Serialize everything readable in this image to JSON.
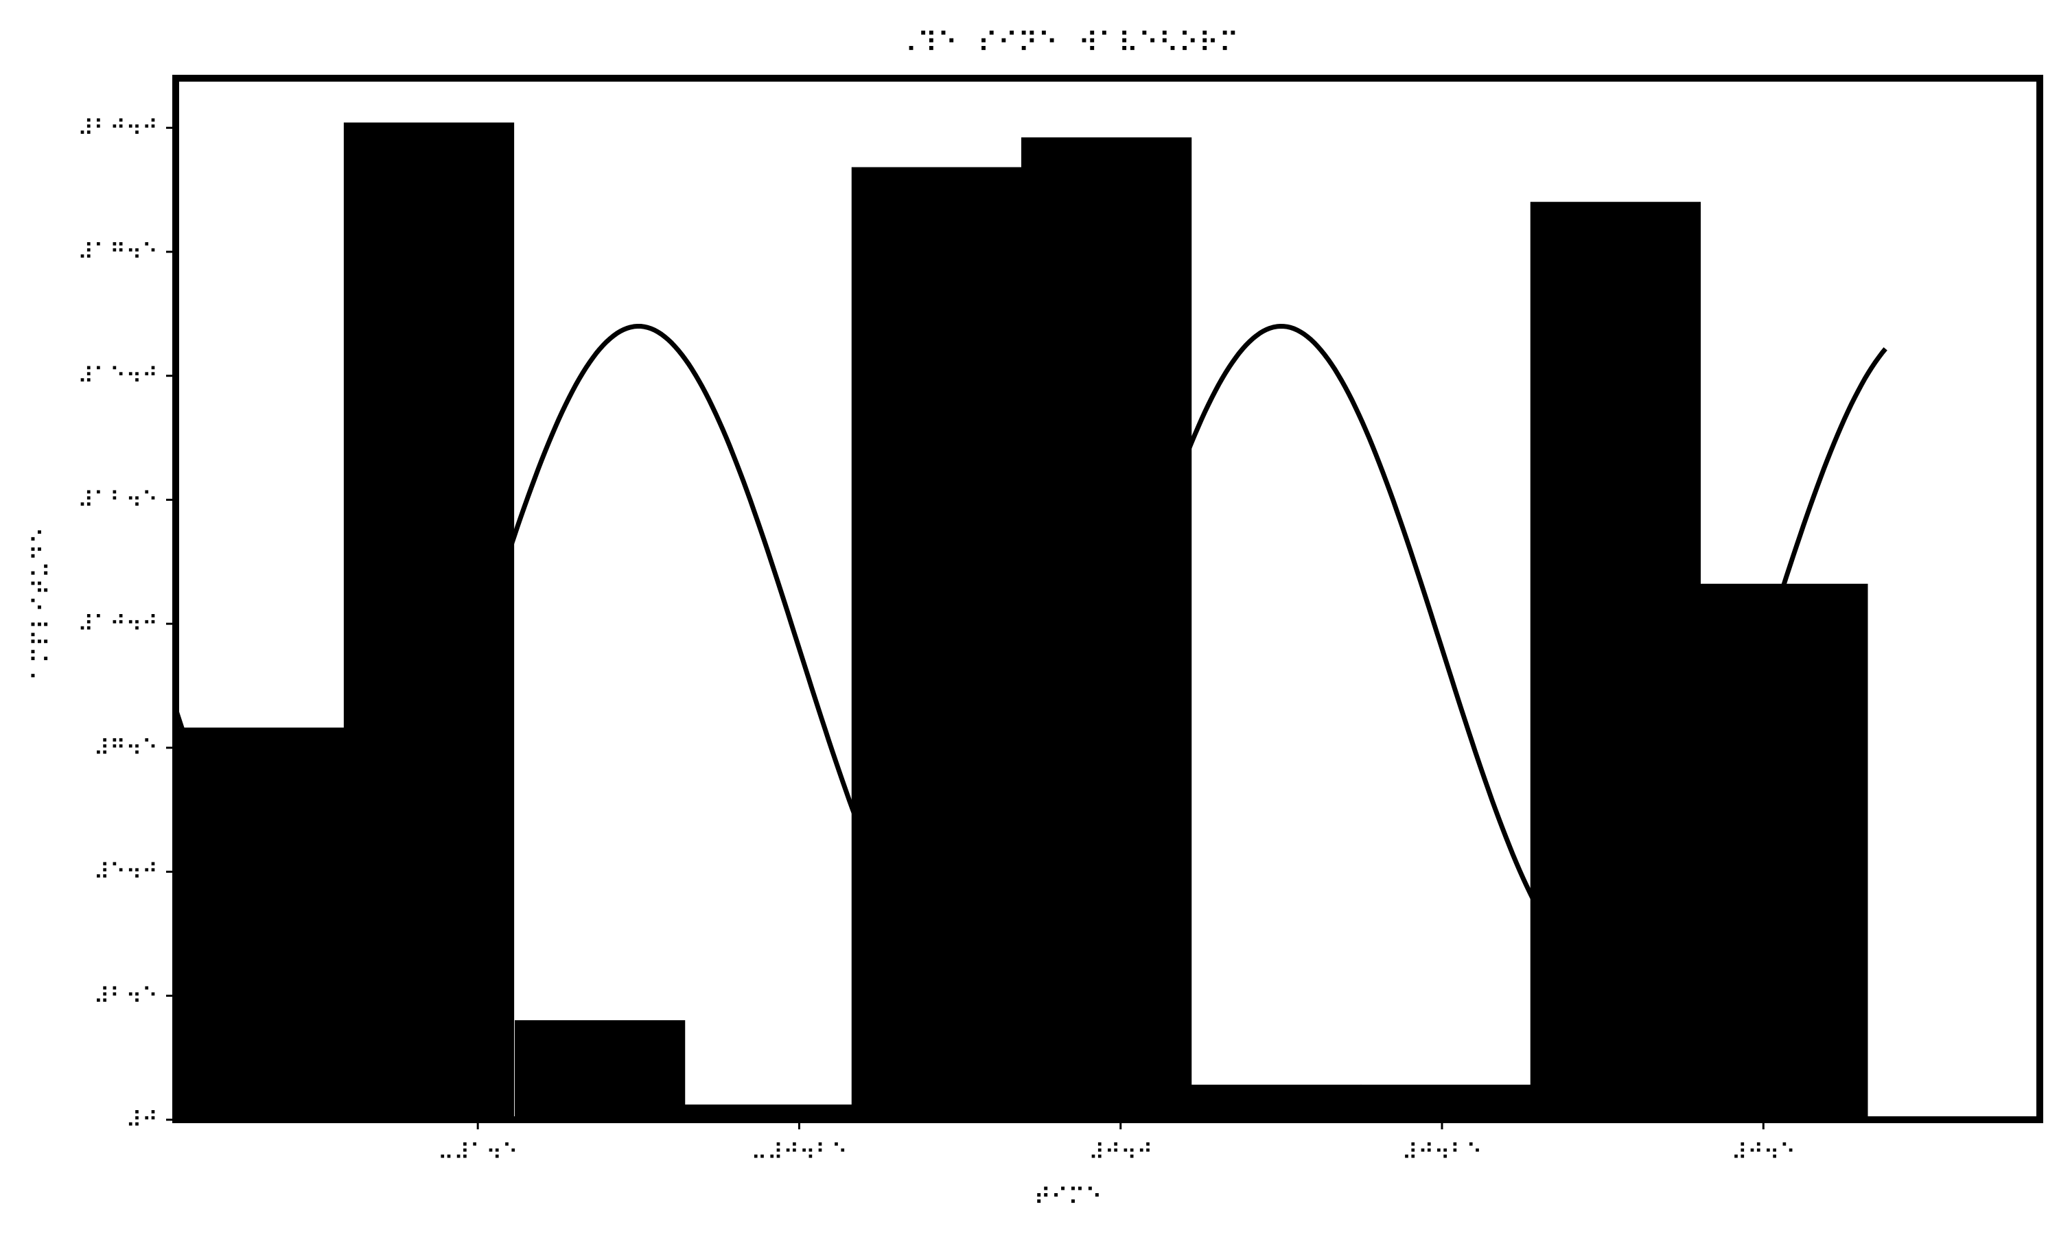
{
  "chart_data": {
    "type": "bar",
    "title": "⠠⠹⠑⠀⠎⠊⠝⠑⠀⠺⠁⠧⠑⠣⠕⠗⠍",
    "xlabel": "⠞⠊⠍⠑",
    "ylabel": "⠁⠍⠏⠇⠊⠞⠥⠙⠑",
    "x_ticks": [
      {
        "value": -0.5,
        "label": "⠤⠼⠁⠲⠑"
      },
      {
        "value": -0.25,
        "label": "⠤⠼⠚⠲⠃⠑"
      },
      {
        "value": 0.0,
        "label": "⠼⠚⠲⠚"
      },
      {
        "value": 0.25,
        "label": "⠼⠚⠲⠃⠑"
      },
      {
        "value": 0.5,
        "label": "⠼⠚⠲⠑"
      }
    ],
    "y_ticks": [
      {
        "value": 0.0,
        "label": "⠼⠚"
      },
      {
        "value": 2.5,
        "label": "⠼⠃⠲⠑"
      },
      {
        "value": 5.0,
        "label": "⠼⠑⠲⠚"
      },
      {
        "value": 7.5,
        "label": "⠼⠛⠲⠑"
      },
      {
        "value": 10.0,
        "label": "⠼⠁⠚⠲⠚"
      },
      {
        "value": 12.5,
        "label": "⠼⠁⠃⠲⠑"
      },
      {
        "value": 15.0,
        "label": "⠼⠁⠑⠲⠚"
      },
      {
        "value": 17.5,
        "label": "⠼⠁⠛⠲⠑"
      },
      {
        "value": 20.0,
        "label": "⠼⠃⠚⠲⠚"
      }
    ],
    "xlim": [
      -0.735,
      0.715
    ],
    "ylim": [
      0,
      21
    ],
    "bar_width": 0.132,
    "bars": [
      {
        "x": -0.67,
        "value": 7.9
      },
      {
        "x": -0.538,
        "value": 20.1
      },
      {
        "x": -0.405,
        "value": 2.0
      },
      {
        "x": -0.275,
        "value": 0.3
      },
      {
        "x": -0.143,
        "value": 19.2
      },
      {
        "x": -0.011,
        "value": 19.8
      },
      {
        "x": 0.121,
        "value": 0.7
      },
      {
        "x": 0.253,
        "value": 0.7
      },
      {
        "x": 0.385,
        "value": 18.5
      },
      {
        "x": 0.515,
        "value": 10.8
      }
    ],
    "curve": {
      "type": "line",
      "amplitude": 6.5,
      "offset": 9.5,
      "frequency": 2.0,
      "phase": 0.0,
      "x_range": [
        -0.735,
        0.595
      ]
    },
    "grid": false,
    "legend": "none",
    "colors": {
      "bars": "#000000",
      "line": "#000000",
      "background": "#ffffff"
    }
  }
}
